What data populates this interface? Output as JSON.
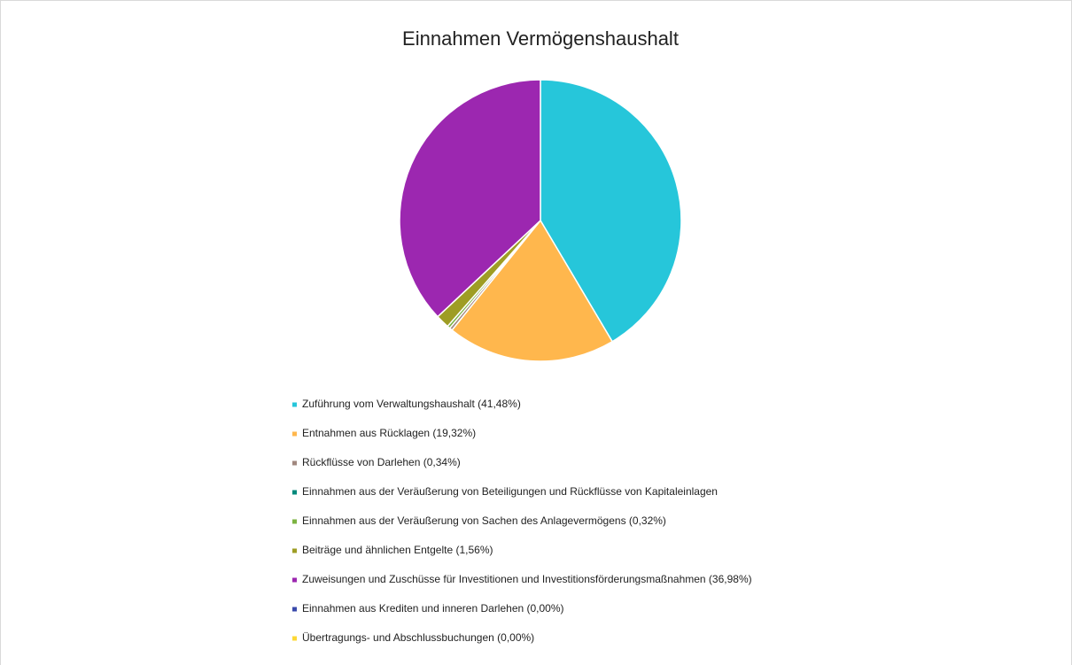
{
  "chart_data": {
    "type": "pie",
    "title": "Einnahmen Vermögenshaushalt",
    "categories": [
      "Zuführung vom Verwaltungshaushalt (41,48%)",
      "Entnahmen aus Rücklagen (19,32%)",
      "Rückflüsse von Darlehen (0,34%)",
      "Einnahmen aus der Veräußerung von Beteiligungen und Rückflüsse von Kapitaleinlagen",
      "Einnahmen aus der Veräußerung von Sachen des Anlagevermögens (0,32%)",
      "Beiträge und ähnlichen Entgelte (1,56%)",
      "Zuweisungen und Zuschüsse für Investitionen und Investitionsförderungsmaßnahmen (36,98%)",
      "Einnahmen aus Krediten und inneren Darlehen (0,00%)",
      "Übertragungs- und Abschlussbuchungen (0,00%)"
    ],
    "values": [
      41.48,
      19.32,
      0.34,
      0,
      0.32,
      1.56,
      36.98,
      0,
      0
    ],
    "colors": [
      "#26c6da",
      "#ffb74d",
      "#a1887f",
      "#00897b",
      "#7cb342",
      "#9e9d24",
      "#9c27b0",
      "#3949ab",
      "#fdd835"
    ]
  }
}
